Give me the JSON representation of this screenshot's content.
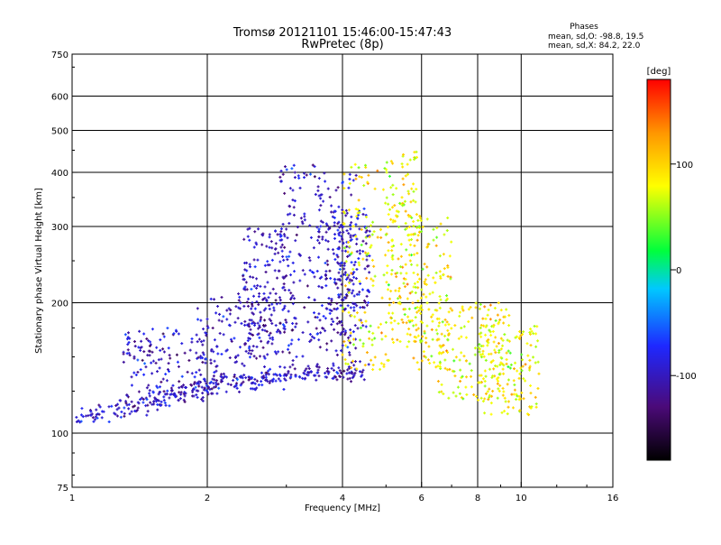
{
  "chart_data": {
    "type": "scatter",
    "title": "Tromsø 20121101 15:46:00-15:47:43",
    "subtitle": "RwPretec (8p)",
    "info": {
      "heading": "Phases",
      "line_o": "mean, sd,O: -98.8, 19.5",
      "line_x": "mean, sd,X:  84.2, 22.0"
    },
    "xlabel": "Frequency [MHz]",
    "ylabel": "Stationary phase Virtual Height [km]",
    "x_scale": "log",
    "y_scale": "log",
    "xlim": [
      1,
      16
    ],
    "ylim": [
      75,
      750
    ],
    "x_ticks": [
      1,
      2,
      4,
      6,
      8,
      10,
      16
    ],
    "x_tick_labels": [
      "1",
      "2",
      "4",
      "6",
      "8",
      "10",
      "16"
    ],
    "y_ticks": [
      75,
      100,
      200,
      300,
      400,
      500,
      600,
      750
    ],
    "y_tick_labels": [
      "75",
      "100",
      "200",
      "300",
      "400",
      "500",
      "600",
      "750"
    ],
    "grid": true,
    "grid_x": [
      2,
      4,
      6,
      8,
      10
    ],
    "grid_y": [
      100,
      200,
      300,
      400,
      500,
      600
    ],
    "colorbar": {
      "label": "[deg]",
      "range": [
        -180,
        180
      ],
      "ticks": [
        100,
        0,
        -100
      ],
      "tick_labels": [
        "100",
        "0",
        "-100"
      ],
      "colormap": "rainbow"
    },
    "series": [
      {
        "mode": "O",
        "phase_mean": -98.8,
        "phase_sd": 19.5,
        "trace": [
          [
            1.0,
            108
          ],
          [
            1.2,
            112
          ],
          [
            1.4,
            116
          ],
          [
            1.6,
            120
          ],
          [
            1.8,
            124
          ],
          [
            2.0,
            128
          ],
          [
            2.3,
            131
          ],
          [
            2.6,
            133
          ],
          [
            3.0,
            135
          ],
          [
            3.5,
            137
          ],
          [
            4.0,
            138
          ],
          [
            4.5,
            140
          ]
        ],
        "clusters": [
          {
            "x": [
              1.3,
              2.0
            ],
            "y": [
              118,
              175
            ]
          },
          {
            "x": [
              1.9,
              2.8
            ],
            "y": [
              130,
              210
            ]
          },
          {
            "x": [
              2.4,
              3.0
            ],
            "y": [
              150,
              300
            ]
          },
          {
            "x": [
              2.9,
              3.6
            ],
            "y": [
              140,
              420
            ]
          },
          {
            "x": [
              3.5,
              4.3
            ],
            "y": [
              150,
              400
            ]
          },
          {
            "x": [
              3.8,
              4.6
            ],
            "y": [
              170,
              330
            ]
          }
        ]
      },
      {
        "mode": "X",
        "phase_mean": 84.2,
        "phase_sd": 22.0,
        "clusters": [
          {
            "x": [
              4.0,
              5.2
            ],
            "y": [
              140,
              420
            ]
          },
          {
            "x": [
              5.0,
              6.0
            ],
            "y": [
              160,
              450
            ]
          },
          {
            "x": [
              5.5,
              7.0
            ],
            "y": [
              140,
              320
            ]
          },
          {
            "x": [
              6.5,
              9.5
            ],
            "y": [
              120,
              200
            ]
          },
          {
            "x": [
              8.0,
              11.0
            ],
            "y": [
              110,
              180
            ]
          }
        ]
      }
    ]
  }
}
